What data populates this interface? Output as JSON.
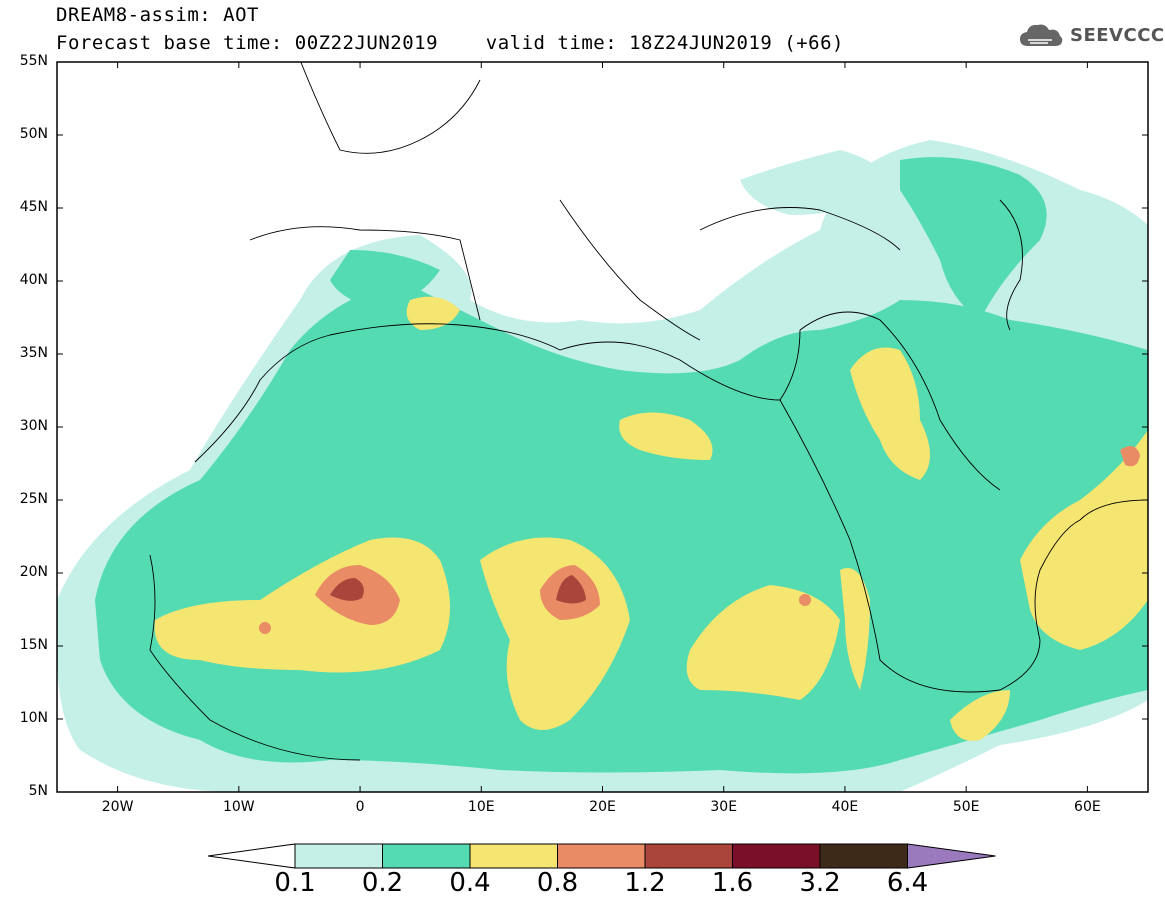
{
  "header": {
    "line1": "DREAM8-assim: AOT",
    "line2": "Forecast base time: 00Z22JUN2019    valid time: 18Z24JUN2019 (+66)",
    "logo_text": "SEEVCCC",
    "logo_icon": "cloud-icon"
  },
  "map": {
    "lon_range": [
      -25,
      65
    ],
    "lat_range": [
      5,
      55
    ],
    "y_ticks": [
      "55N",
      "50N",
      "45N",
      "40N",
      "35N",
      "30N",
      "25N",
      "20N",
      "15N",
      "10N",
      "5N"
    ],
    "x_ticks": [
      "20W",
      "10W",
      "0",
      "10E",
      "20E",
      "30E",
      "40E",
      "50E",
      "60E"
    ]
  },
  "colorbar": {
    "labels": [
      "0.1",
      "0.2",
      "0.4",
      "0.8",
      "1.2",
      "1.6",
      "3.2",
      "6.4"
    ],
    "colors": [
      "#ffffff",
      "#c4f0e8",
      "#55dbb2",
      "#f5e571",
      "#e98c66",
      "#a9453b",
      "#7a0f2a",
      "#3e2a18",
      "#9b79bd"
    ]
  }
}
